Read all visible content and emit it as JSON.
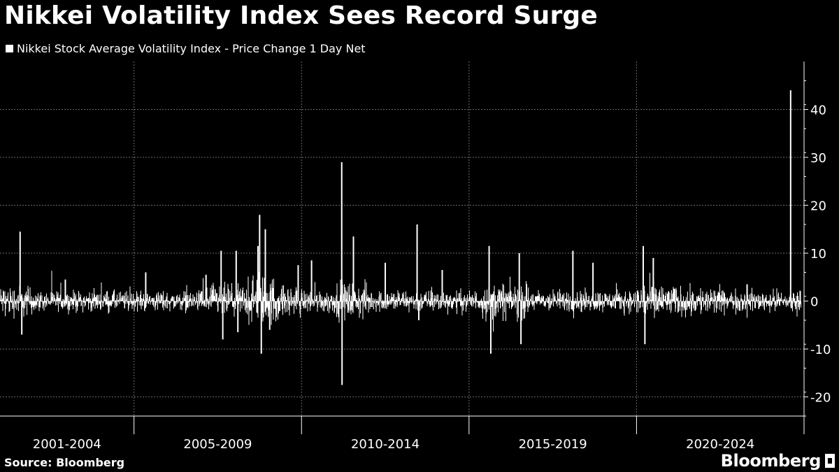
{
  "header": {
    "title": "Nikkei Volatility Index Sees Record Surge"
  },
  "footer": {
    "source": "Source: Bloomberg",
    "brand": "Bloomberg"
  },
  "colors": {
    "background": "#000000",
    "series": "#ffffff",
    "grid": "#6b6b6b",
    "axis": "#ffffff"
  },
  "chart_data": {
    "type": "bar",
    "title": "Nikkei Volatility Index Sees Record Surge",
    "legend": {
      "position": "top-left",
      "entries": [
        "Nikkei Stock Average Volatility Index - Price Change 1 Day Net"
      ]
    },
    "y_axis": {
      "side": "right",
      "ticks": [
        -20,
        -10,
        0,
        10,
        20,
        30,
        40
      ],
      "range": [
        -24,
        50
      ]
    },
    "x_axis": {
      "period_labels": [
        "2001-2004",
        "2005-2009",
        "2010-2014",
        "2015-2019",
        "2020-2024"
      ],
      "range": [
        2001.0,
        2025.0
      ]
    },
    "grid": true,
    "series": [
      {
        "name": "Nikkei Stock Average Volatility Index - Price Change 1 Day Net",
        "notable_points": [
          {
            "x": 2001.6,
            "y": 14.5
          },
          {
            "x": 2001.65,
            "y": -7
          },
          {
            "x": 2002.95,
            "y": 4.5
          },
          {
            "x": 2005.35,
            "y": 6
          },
          {
            "x": 2007.15,
            "y": 5.5
          },
          {
            "x": 2007.6,
            "y": 10.5
          },
          {
            "x": 2007.65,
            "y": -8
          },
          {
            "x": 2008.05,
            "y": 10.5
          },
          {
            "x": 2008.1,
            "y": -6.5
          },
          {
            "x": 2008.7,
            "y": 11.5
          },
          {
            "x": 2008.75,
            "y": 18
          },
          {
            "x": 2008.8,
            "y": -11
          },
          {
            "x": 2008.92,
            "y": 15
          },
          {
            "x": 2009.05,
            "y": -6
          },
          {
            "x": 2009.9,
            "y": 7.5
          },
          {
            "x": 2010.3,
            "y": 8.5
          },
          {
            "x": 2011.2,
            "y": 29
          },
          {
            "x": 2011.21,
            "y": -17.5
          },
          {
            "x": 2011.55,
            "y": 13.5
          },
          {
            "x": 2012.5,
            "y": 8
          },
          {
            "x": 2013.45,
            "y": 16
          },
          {
            "x": 2013.5,
            "y": -4
          },
          {
            "x": 2014.2,
            "y": 6.5
          },
          {
            "x": 2015.6,
            "y": 11.5
          },
          {
            "x": 2015.65,
            "y": -11
          },
          {
            "x": 2016.5,
            "y": 10
          },
          {
            "x": 2016.55,
            "y": -9
          },
          {
            "x": 2018.1,
            "y": 10.5
          },
          {
            "x": 2018.7,
            "y": 8
          },
          {
            "x": 2020.2,
            "y": 11.5
          },
          {
            "x": 2020.25,
            "y": -9
          },
          {
            "x": 2020.5,
            "y": 9
          },
          {
            "x": 2023.3,
            "y": 3.5
          },
          {
            "x": 2024.6,
            "y": 44
          },
          {
            "x": 2024.62,
            "y": -1.5
          }
        ]
      }
    ]
  }
}
